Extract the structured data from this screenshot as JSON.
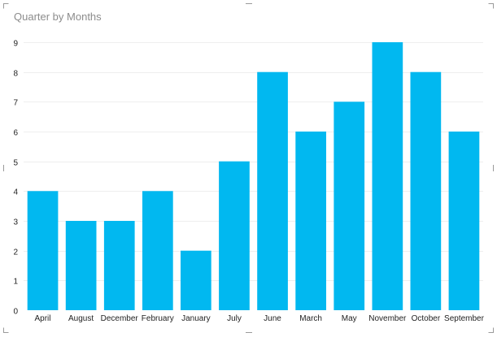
{
  "chart_data": {
    "type": "bar",
    "title": "Quarter by Months",
    "xlabel": "",
    "ylabel": "",
    "categories": [
      "April",
      "August",
      "December",
      "February",
      "January",
      "July",
      "June",
      "March",
      "May",
      "November",
      "October",
      "September"
    ],
    "values": [
      4,
      3,
      3,
      4,
      2,
      5,
      8,
      6,
      7,
      9,
      8,
      6
    ],
    "ylim": [
      0,
      9
    ],
    "yticks": [
      0,
      1,
      2,
      3,
      4,
      5,
      6,
      7,
      8,
      9
    ],
    "grid": true,
    "legend": "none",
    "bar_color": "#01B8F0",
    "grid_color": "#eeeeee"
  }
}
